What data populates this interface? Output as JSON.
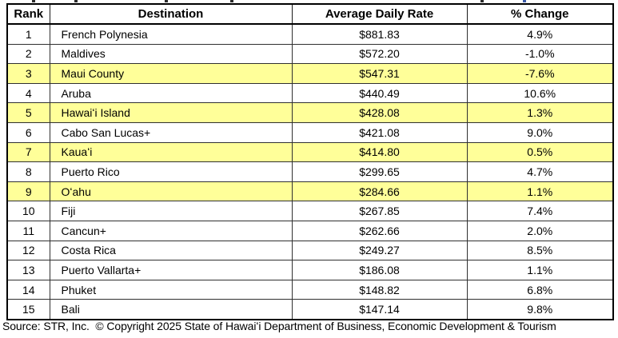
{
  "chart_data": {
    "type": "table",
    "columns": [
      "Rank",
      "Destination",
      "Average Daily Rate",
      "% Change"
    ],
    "rows": [
      {
        "rank": "1",
        "destination": "French Polynesia",
        "avg_daily_rate": "$881.83",
        "pct_change": "4.9%",
        "highlighted": false
      },
      {
        "rank": "2",
        "destination": "Maldives",
        "avg_daily_rate": "$572.20",
        "pct_change": "-1.0%",
        "highlighted": false
      },
      {
        "rank": "3",
        "destination": "Maui County",
        "avg_daily_rate": "$547.31",
        "pct_change": "-7.6%",
        "highlighted": true
      },
      {
        "rank": "4",
        "destination": "Aruba",
        "avg_daily_rate": "$440.49",
        "pct_change": "10.6%",
        "highlighted": false
      },
      {
        "rank": "5",
        "destination": "Hawaiʻi Island",
        "avg_daily_rate": "$428.08",
        "pct_change": "1.3%",
        "highlighted": true
      },
      {
        "rank": "6",
        "destination": "Cabo San Lucas+",
        "avg_daily_rate": "$421.08",
        "pct_change": "9.0%",
        "highlighted": false
      },
      {
        "rank": "7",
        "destination": "Kauaʻi",
        "avg_daily_rate": "$414.80",
        "pct_change": "0.5%",
        "highlighted": true
      },
      {
        "rank": "8",
        "destination": "Puerto Rico",
        "avg_daily_rate": "$299.65",
        "pct_change": "4.7%",
        "highlighted": false
      },
      {
        "rank": "9",
        "destination": "Oʻahu",
        "avg_daily_rate": "$284.66",
        "pct_change": "1.1%",
        "highlighted": true
      },
      {
        "rank": "10",
        "destination": "Fiji",
        "avg_daily_rate": "$267.85",
        "pct_change": "7.4%",
        "highlighted": false
      },
      {
        "rank": "11",
        "destination": "Cancun+",
        "avg_daily_rate": "$262.66",
        "pct_change": "2.0%",
        "highlighted": false
      },
      {
        "rank": "12",
        "destination": "Costa Rica",
        "avg_daily_rate": "$249.27",
        "pct_change": "8.5%",
        "highlighted": false
      },
      {
        "rank": "13",
        "destination": "Puerto Vallarta+",
        "avg_daily_rate": "$186.08",
        "pct_change": "1.1%",
        "highlighted": false
      },
      {
        "rank": "14",
        "destination": "Phuket",
        "avg_daily_rate": "$148.82",
        "pct_change": "6.8%",
        "highlighted": false
      },
      {
        "rank": "15",
        "destination": "Bali",
        "avg_daily_rate": "$147.14",
        "pct_change": "9.8%",
        "highlighted": false
      }
    ]
  },
  "colors": {
    "row_highlight": "#FFFF99"
  },
  "footer": {
    "text": "Source: STR, Inc.  © Copyright 2025 State of Hawaiʻi Department of Business, Economic Development & Tourism"
  }
}
